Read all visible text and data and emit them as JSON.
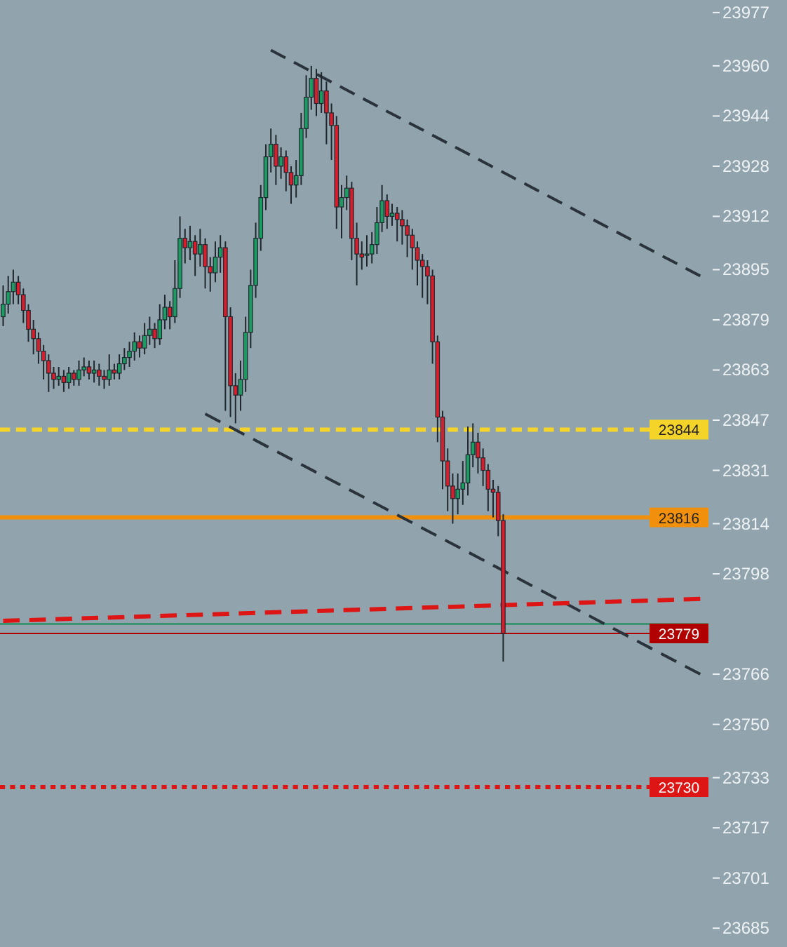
{
  "chart_data": {
    "type": "candlestick",
    "categories": [
      null,
      null,
      null,
      null,
      null,
      null,
      null,
      null,
      null,
      null,
      null,
      null,
      null,
      null,
      null,
      null,
      null,
      null,
      null,
      null,
      null,
      null,
      null,
      null,
      null,
      null,
      null,
      null,
      null,
      null,
      null,
      null,
      null,
      null,
      null,
      null,
      null,
      null,
      null,
      null,
      null,
      null,
      null,
      null,
      null,
      null,
      null,
      null,
      null,
      null,
      null,
      null,
      null,
      null,
      null,
      null,
      null,
      null,
      null,
      null,
      null,
      null,
      null,
      null,
      null,
      null,
      null,
      null,
      null,
      null,
      null,
      null,
      null,
      null,
      null,
      null,
      null,
      null,
      null,
      null,
      null,
      null,
      null,
      null,
      null,
      null,
      null,
      null,
      null,
      null,
      null,
      null,
      null,
      null,
      null,
      null,
      null,
      null,
      null,
      null,
      null,
      null,
      null,
      null,
      null,
      null,
      null,
      null,
      null,
      null,
      null,
      null,
      null,
      null,
      null,
      null,
      null,
      null,
      null,
      null,
      null,
      null,
      null,
      null,
      null,
      null,
      null,
      null,
      null,
      null,
      null,
      null,
      null,
      null,
      null,
      null,
      null,
      null,
      null,
      null
    ],
    "ohlc": [
      [
        23880,
        23890,
        23877,
        23884
      ],
      [
        23884,
        23893,
        23881,
        23888
      ],
      [
        23888,
        23895,
        23884,
        23891
      ],
      [
        23891,
        23893,
        23884,
        23887
      ],
      [
        23887,
        23889,
        23878,
        23882
      ],
      [
        23882,
        23884,
        23872,
        23876
      ],
      [
        23876,
        23879,
        23868,
        23873
      ],
      [
        23873,
        23875,
        23865,
        23869
      ],
      [
        23869,
        23871,
        23860,
        23866
      ],
      [
        23866,
        23868,
        23856,
        23862
      ],
      [
        23862,
        23864,
        23857,
        23860
      ],
      [
        23860,
        23864,
        23858,
        23861
      ],
      [
        23861,
        23863,
        23856,
        23859
      ],
      [
        23859,
        23864,
        23857,
        23862
      ],
      [
        23862,
        23863,
        23858,
        23860
      ],
      [
        23860,
        23866,
        23858,
        23863
      ],
      [
        23863,
        23867,
        23861,
        23864
      ],
      [
        23864,
        23866,
        23860,
        23862
      ],
      [
        23862,
        23866,
        23859,
        23863
      ],
      [
        23863,
        23865,
        23858,
        23861
      ],
      [
        23861,
        23863,
        23857,
        23860
      ],
      [
        23860,
        23868,
        23858,
        23863
      ],
      [
        23863,
        23865,
        23860,
        23862
      ],
      [
        23862,
        23868,
        23860,
        23865
      ],
      [
        23865,
        23870,
        23863,
        23867
      ],
      [
        23867,
        23872,
        23864,
        23869
      ],
      [
        23869,
        23875,
        23866,
        23872
      ],
      [
        23872,
        23874,
        23867,
        23870
      ],
      [
        23870,
        23878,
        23868,
        23874
      ],
      [
        23874,
        23880,
        23871,
        23876
      ],
      [
        23876,
        23878,
        23870,
        23873
      ],
      [
        23873,
        23884,
        23871,
        23879
      ],
      [
        23879,
        23887,
        23876,
        23883
      ],
      [
        23883,
        23885,
        23876,
        23880
      ],
      [
        23880,
        23898,
        23878,
        23889
      ],
      [
        23889,
        23912,
        23886,
        23905
      ],
      [
        23905,
        23908,
        23897,
        23902
      ],
      [
        23902,
        23909,
        23898,
        23904
      ],
      [
        23904,
        23906,
        23893,
        23900
      ],
      [
        23900,
        23908,
        23896,
        23903
      ],
      [
        23903,
        23905,
        23889,
        23896
      ],
      [
        23896,
        23899,
        23888,
        23894
      ],
      [
        23894,
        23904,
        23891,
        23899
      ],
      [
        23899,
        23906,
        23894,
        23902
      ],
      [
        23902,
        23904,
        23850,
        23880
      ],
      [
        23880,
        23883,
        23848,
        23858
      ],
      [
        23858,
        23862,
        23846,
        23855
      ],
      [
        23855,
        23866,
        23850,
        23860
      ],
      [
        23860,
        23880,
        23856,
        23875
      ],
      [
        23875,
        23895,
        23870,
        23890
      ],
      [
        23890,
        23910,
        23886,
        23905
      ],
      [
        23905,
        23922,
        23901,
        23918
      ],
      [
        23918,
        23935,
        23914,
        23931
      ],
      [
        23931,
        23940,
        23926,
        23935
      ],
      [
        23935,
        23938,
        23922,
        23928
      ],
      [
        23928,
        23934,
        23924,
        23931
      ],
      [
        23931,
        23933,
        23920,
        23926
      ],
      [
        23926,
        23928,
        23916,
        23922
      ],
      [
        23922,
        23930,
        23918,
        23925
      ],
      [
        23925,
        23945,
        23922,
        23940
      ],
      [
        23940,
        23957,
        23937,
        23950
      ],
      [
        23950,
        23960,
        23946,
        23956
      ],
      [
        23956,
        23959,
        23944,
        23948
      ],
      [
        23948,
        23958,
        23945,
        23952
      ],
      [
        23952,
        23955,
        23935,
        23945
      ],
      [
        23945,
        23948,
        23930,
        23941
      ],
      [
        23941,
        23944,
        23908,
        23915
      ],
      [
        23915,
        23922,
        23905,
        23918
      ],
      [
        23918,
        23925,
        23914,
        23921
      ],
      [
        23921,
        23923,
        23898,
        23905
      ],
      [
        23905,
        23910,
        23890,
        23900
      ],
      [
        23900,
        23904,
        23895,
        23899
      ],
      [
        23900,
        23906,
        23896,
        23900
      ],
      [
        23900,
        23907,
        23897,
        23903
      ],
      [
        23903,
        23915,
        23900,
        23910
      ],
      [
        23910,
        23922,
        23907,
        23917
      ],
      [
        23917,
        23919,
        23908,
        23912
      ],
      [
        23912,
        23916,
        23909,
        23913
      ],
      [
        23913,
        23915,
        23904,
        23911
      ],
      [
        23911,
        23914,
        23903,
        23909
      ],
      [
        23909,
        23911,
        23899,
        23906
      ],
      [
        23906,
        23908,
        23895,
        23902
      ],
      [
        23902,
        23904,
        23890,
        23898
      ],
      [
        23898,
        23900,
        23886,
        23896
      ],
      [
        23896,
        23898,
        23884,
        23893
      ],
      [
        23893,
        23895,
        23865,
        23872
      ],
      [
        23872,
        23874,
        23840,
        23848
      ],
      [
        23848,
        23850,
        23825,
        23834
      ],
      [
        23834,
        23838,
        23818,
        23826
      ],
      [
        23826,
        23830,
        23814,
        23822
      ],
      [
        23822,
        23830,
        23817,
        23825
      ],
      [
        23825,
        23834,
        23820,
        23827
      ],
      [
        23827,
        23845,
        23823,
        23836
      ],
      [
        23836,
        23846,
        23832,
        23840
      ],
      [
        23840,
        23843,
        23830,
        23835
      ],
      [
        23835,
        23838,
        23826,
        23831
      ],
      [
        23831,
        23833,
        23818,
        23825
      ],
      [
        23825,
        23828,
        23816,
        23824
      ],
      [
        23824,
        23826,
        23810,
        23815
      ],
      [
        23815,
        23817,
        23770,
        23779
      ],
      null,
      null,
      null,
      null,
      null,
      null,
      null,
      null,
      null,
      null,
      null,
      null,
      null,
      null,
      null,
      null,
      null,
      null,
      null,
      null,
      null,
      null,
      null,
      null,
      null,
      null,
      null,
      null,
      null,
      null,
      null,
      null,
      null,
      null,
      null,
      null,
      null,
      null,
      null,
      null
    ],
    "colors": [
      "#1b9c62",
      "#1b9c62",
      "#1b9c62",
      "#d81e2c",
      "#d81e2c",
      "#d81e2c",
      "#d81e2c",
      "#d81e2c",
      "#d81e2c",
      "#d81e2c",
      "#d81e2c",
      "#1b9c62",
      "#d81e2c",
      "#1b9c62",
      "#d81e2c",
      "#1b9c62",
      "#1b9c62",
      "#d81e2c",
      "#1b9c62",
      "#d81e2c",
      "#d81e2c",
      "#1b9c62",
      "#d81e2c",
      "#1b9c62",
      "#1b9c62",
      "#1b9c62",
      "#1b9c62",
      "#d81e2c",
      "#1b9c62",
      "#1b9c62",
      "#d81e2c",
      "#1b9c62",
      "#1b9c62",
      "#d81e2c",
      "#1b9c62",
      "#1b9c62",
      "#d81e2c",
      "#1b9c62",
      "#d81e2c",
      "#1b9c62",
      "#d81e2c",
      "#d81e2c",
      "#1b9c62",
      "#1b9c62",
      "#d81e2c",
      "#d81e2c",
      "#d81e2c",
      "#1b9c62",
      "#1b9c62",
      "#1b9c62",
      "#1b9c62",
      "#1b9c62",
      "#1b9c62",
      "#1b9c62",
      "#d81e2c",
      "#1b9c62",
      "#d81e2c",
      "#d81e2c",
      "#1b9c62",
      "#1b9c62",
      "#1b9c62",
      "#1b9c62",
      "#d81e2c",
      "#1b9c62",
      "#d81e2c",
      "#d81e2c",
      "#d81e2c",
      "#1b9c62",
      "#1b9c62",
      "#d81e2c",
      "#d81e2c",
      "#d81e2c",
      "#1b9c62",
      "#1b9c62",
      "#1b9c62",
      "#1b9c62",
      "#d81e2c",
      "#1b9c62",
      "#d81e2c",
      "#d81e2c",
      "#d81e2c",
      "#d81e2c",
      "#d81e2c",
      "#d81e2c",
      "#d81e2c",
      "#d81e2c",
      "#d81e2c",
      "#d81e2c",
      "#d81e2c",
      "#d81e2c",
      "#1b9c62",
      "#1b9c62",
      "#1b9c62",
      "#1b9c62",
      "#d81e2c",
      "#d81e2c",
      "#d81e2c",
      "#d81e2c",
      "#d81e2c",
      "#d81e2c",
      null,
      null,
      null,
      null,
      null,
      null,
      null,
      null,
      null,
      null,
      null,
      null,
      null,
      null,
      null,
      null,
      null,
      null,
      null,
      null,
      null,
      null,
      null,
      null,
      null,
      null,
      null,
      null,
      null,
      null,
      null,
      null,
      null,
      null,
      null,
      null,
      null,
      null,
      null,
      null
    ],
    "series": [
      {
        "type": "line",
        "color": "#2a333b",
        "line_style": "dashed",
        "values": [
          null,
          null,
          null,
          null,
          null,
          null,
          null,
          null,
          null,
          null,
          null,
          null,
          null,
          null,
          null,
          null,
          null,
          null,
          null,
          null,
          null,
          null,
          null,
          null,
          null,
          null,
          null,
          null,
          null,
          null,
          null,
          null,
          null,
          null,
          null,
          null,
          null,
          null,
          null,
          null,
          null,
          null,
          null,
          null,
          null,
          null,
          null,
          null,
          null,
          null,
          null,
          null,
          null,
          23965,
          null,
          null,
          null,
          null,
          null,
          null,
          null,
          null,
          null,
          null,
          null,
          null,
          null,
          null,
          null,
          null,
          null,
          null,
          null,
          null,
          null,
          null,
          null,
          null,
          null,
          null,
          null,
          null,
          null,
          null,
          null,
          null,
          null,
          null,
          null,
          null,
          null,
          null,
          null,
          null,
          null,
          null,
          null,
          null,
          null,
          null,
          null,
          null,
          null,
          null,
          null,
          null,
          null,
          null,
          null,
          null,
          null,
          null,
          null,
          null,
          null,
          null,
          null,
          null,
          null,
          null,
          null,
          null,
          null,
          null,
          null,
          null,
          null,
          null,
          null,
          null,
          null,
          null,
          null,
          null,
          null,
          null,
          null,
          null,
          23893,
          null
        ]
      },
      {
        "type": "line",
        "color": "#2a333b",
        "line_style": "dashed",
        "values": [
          null,
          null,
          null,
          null,
          null,
          null,
          null,
          null,
          null,
          null,
          null,
          null,
          null,
          null,
          null,
          null,
          null,
          null,
          null,
          null,
          null,
          null,
          null,
          null,
          null,
          null,
          null,
          null,
          null,
          null,
          null,
          null,
          null,
          null,
          null,
          null,
          null,
          null,
          null,
          null,
          23849,
          null,
          null,
          null,
          null,
          null,
          null,
          null,
          null,
          null,
          null,
          null,
          null,
          null,
          null,
          null,
          null,
          null,
          null,
          null,
          null,
          null,
          null,
          null,
          null,
          null,
          null,
          null,
          null,
          null,
          null,
          null,
          null,
          null,
          null,
          null,
          null,
          null,
          null,
          null,
          null,
          null,
          null,
          null,
          null,
          null,
          null,
          null,
          null,
          null,
          null,
          null,
          null,
          null,
          null,
          null,
          null,
          null,
          null,
          null,
          null,
          null,
          null,
          null,
          null,
          null,
          null,
          null,
          null,
          null,
          null,
          null,
          null,
          null,
          null,
          null,
          null,
          null,
          null,
          null,
          null,
          null,
          null,
          null,
          null,
          null,
          null,
          null,
          null,
          null,
          null,
          null,
          null,
          null,
          null,
          null,
          null,
          null,
          23766,
          null
        ]
      },
      {
        "type": "line",
        "color": "#dd1515",
        "line_style": "dashed",
        "values": [
          23783,
          null,
          null,
          null,
          null,
          null,
          null,
          null,
          null,
          null,
          null,
          null,
          null,
          null,
          null,
          null,
          null,
          null,
          null,
          null,
          null,
          null,
          null,
          null,
          null,
          null,
          null,
          null,
          null,
          null,
          null,
          null,
          null,
          null,
          null,
          null,
          null,
          null,
          null,
          null,
          null,
          null,
          null,
          null,
          null,
          null,
          null,
          null,
          null,
          null,
          null,
          null,
          null,
          null,
          null,
          null,
          null,
          null,
          null,
          null,
          null,
          null,
          null,
          null,
          null,
          null,
          null,
          null,
          null,
          null,
          null,
          null,
          null,
          null,
          null,
          null,
          null,
          null,
          null,
          null,
          null,
          null,
          null,
          null,
          null,
          null,
          null,
          null,
          null,
          null,
          null,
          null,
          null,
          null,
          null,
          null,
          null,
          null,
          null,
          null,
          null,
          null,
          null,
          null,
          null,
          null,
          null,
          null,
          null,
          null,
          null,
          null,
          null,
          null,
          null,
          null,
          null,
          null,
          null,
          null,
          null,
          null,
          null,
          null,
          null,
          null,
          null,
          null,
          null,
          null,
          null,
          null,
          null,
          null,
          null,
          null,
          null,
          null,
          23790,
          null
        ]
      }
    ],
    "ylim": [
      23679,
      23981
    ],
    "yticks": [
      23977,
      23960,
      23944,
      23928,
      23912,
      23895,
      23879,
      23863,
      23847,
      23831,
      23814,
      23798,
      23766,
      23750,
      23733,
      23717,
      23701,
      23685
    ],
    "tick_labels": "y",
    "ref_lines": [
      {
        "axis": "y",
        "value": 23844,
        "label": "23844",
        "color": "#f5d42a",
        "line_style": "dashed"
      },
      {
        "axis": "y",
        "value": 23816,
        "label": "23816",
        "color": "#f0900c",
        "line_style": "solid"
      },
      {
        "axis": "y",
        "value": 23730,
        "label": "23730",
        "color": "#dd1515",
        "line_style": "dotted"
      },
      {
        "axis": "y",
        "value": 23782,
        "label": null,
        "color": "#0f8a55",
        "line_style": "solid"
      },
      {
        "axis": "y",
        "value": 23779,
        "label": "23779",
        "color": "#b00000",
        "line_style": "solid"
      }
    ]
  }
}
